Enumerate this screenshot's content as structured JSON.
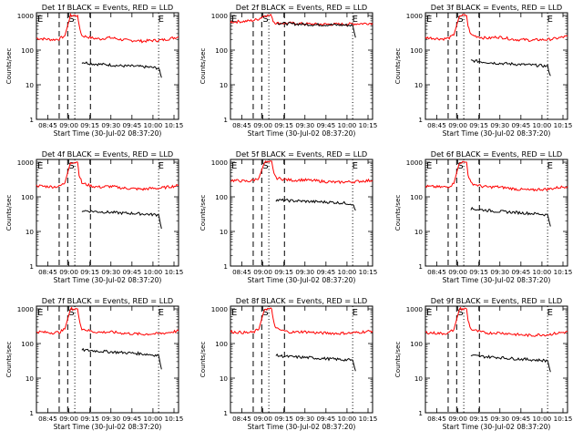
{
  "chart_data": [
    {
      "type": "line",
      "title": "Det 1f BLACK = Events, RED = LLD",
      "xlabel": "Start Time (30-Jul-02 08:37:20)",
      "ylabel": "Counts/sec",
      "xticks": [
        "08:45",
        "09:00",
        "09:15",
        "09:30",
        "09:45",
        "10:00",
        "10:15"
      ],
      "yticks": [
        "1",
        "10",
        "100",
        "1000"
      ],
      "ylim": [
        1,
        1200
      ],
      "yscale": "log",
      "markers": [
        "E",
        "S",
        "E"
      ],
      "series": [
        {
          "color": "#ff0000",
          "x": [
            0,
            0.06,
            0.12,
            0.16,
            0.2,
            0.24,
            0.27,
            0.29,
            0.3,
            0.32,
            0.36,
            0.4,
            0.45,
            0.5,
            0.55,
            0.6,
            0.65,
            0.7,
            0.75,
            0.8,
            0.85,
            0.9,
            0.95,
            1.0
          ],
          "y": [
            220,
            210,
            200,
            210,
            260,
            1000,
            1000,
            1000,
            500,
            260,
            240,
            220,
            210,
            230,
            220,
            200,
            190,
            190,
            180,
            190,
            190,
            200,
            220,
            240
          ]
        },
        {
          "color": "#000000",
          "x": [
            0.32,
            0.4,
            0.5,
            0.6,
            0.7,
            0.8,
            0.86,
            0.88
          ],
          "y": [
            45,
            40,
            38,
            35,
            34,
            32,
            30,
            16
          ]
        }
      ]
    },
    {
      "type": "line",
      "title": "Det 2f BLACK = Events, RED = LLD",
      "xlabel": "Start Time (30-Jul-02 08:37:20)",
      "ylabel": "Counts/sec",
      "xticks": [
        "08:45",
        "09:00",
        "09:15",
        "09:30",
        "09:45",
        "10:00",
        "10:15"
      ],
      "yticks": [
        "1",
        "10",
        "100",
        "1000"
      ],
      "ylim": [
        1,
        1200
      ],
      "yscale": "log",
      "markers": [
        "E",
        "S",
        "E"
      ],
      "series": [
        {
          "color": "#ff0000",
          "x": [
            0,
            0.1,
            0.16,
            0.2,
            0.24,
            0.27,
            0.29,
            0.3,
            0.32,
            0.4,
            0.5,
            0.6,
            0.7,
            0.8,
            0.9,
            1.0
          ],
          "y": [
            650,
            680,
            720,
            800,
            1000,
            1000,
            1000,
            700,
            600,
            600,
            580,
            560,
            560,
            560,
            580,
            600
          ]
        },
        {
          "color": "#000000",
          "x": [
            0.33,
            0.4,
            0.5,
            0.6,
            0.7,
            0.8,
            0.86,
            0.88
          ],
          "y": [
            600,
            580,
            560,
            540,
            540,
            530,
            520,
            230
          ]
        }
      ]
    },
    {
      "type": "line",
      "title": "Det 3f BLACK = Events, RED = LLD",
      "xlabel": "Start Time (30-Jul-02 08:37:20)",
      "ylabel": "Counts/sec",
      "xticks": [
        "08:45",
        "09:00",
        "09:15",
        "09:30",
        "09:45",
        "10:00",
        "10:15"
      ],
      "yticks": [
        "1",
        "10",
        "100",
        "1000"
      ],
      "ylim": [
        1,
        1200
      ],
      "yscale": "log",
      "markers": [
        "E",
        "S",
        "E"
      ],
      "series": [
        {
          "color": "#ff0000",
          "x": [
            0,
            0.06,
            0.12,
            0.16,
            0.2,
            0.24,
            0.27,
            0.29,
            0.3,
            0.32,
            0.36,
            0.4,
            0.45,
            0.5,
            0.55,
            0.6,
            0.65,
            0.7,
            0.75,
            0.8,
            0.85,
            0.9,
            0.95,
            1.0
          ],
          "y": [
            230,
            220,
            210,
            220,
            270,
            1000,
            1000,
            1000,
            500,
            280,
            250,
            230,
            220,
            240,
            230,
            210,
            200,
            200,
            190,
            200,
            200,
            210,
            230,
            250
          ]
        },
        {
          "color": "#000000",
          "x": [
            0.32,
            0.4,
            0.5,
            0.6,
            0.7,
            0.8,
            0.86,
            0.88
          ],
          "y": [
            50,
            46,
            42,
            40,
            38,
            36,
            34,
            18
          ]
        }
      ]
    },
    {
      "type": "line",
      "title": "Det 4f BLACK = Events, RED = LLD",
      "xlabel": "Start Time (30-Jul-02 08:37:20)",
      "ylabel": "Counts/sec",
      "xticks": [
        "08:45",
        "09:00",
        "09:15",
        "09:30",
        "09:45",
        "10:00",
        "10:15"
      ],
      "yticks": [
        "1",
        "10",
        "100",
        "1000"
      ],
      "ylim": [
        1,
        1200
      ],
      "yscale": "log",
      "markers": [
        "E",
        "S",
        "E"
      ],
      "series": [
        {
          "color": "#ff0000",
          "x": [
            0,
            0.06,
            0.12,
            0.16,
            0.2,
            0.24,
            0.27,
            0.29,
            0.3,
            0.32,
            0.36,
            0.4,
            0.45,
            0.5,
            0.55,
            0.6,
            0.65,
            0.7,
            0.75,
            0.8,
            0.85,
            0.9,
            0.95,
            1.0
          ],
          "y": [
            210,
            200,
            195,
            200,
            250,
            1000,
            1000,
            1000,
            450,
            250,
            220,
            200,
            190,
            200,
            195,
            180,
            175,
            170,
            165,
            175,
            175,
            185,
            200,
            210
          ]
        },
        {
          "color": "#000000",
          "x": [
            0.32,
            0.4,
            0.5,
            0.6,
            0.7,
            0.8,
            0.86,
            0.88
          ],
          "y": [
            40,
            38,
            36,
            34,
            33,
            31,
            30,
            12
          ]
        }
      ]
    },
    {
      "type": "line",
      "title": "Det 5f BLACK = Events, RED = LLD",
      "xlabel": "Start Time (30-Jul-02 08:37:20)",
      "ylabel": "Counts/sec",
      "xticks": [
        "08:45",
        "09:00",
        "09:15",
        "09:30",
        "09:45",
        "10:00",
        "10:15"
      ],
      "yticks": [
        "1",
        "10",
        "100",
        "1000"
      ],
      "ylim": [
        1,
        1200
      ],
      "yscale": "log",
      "markers": [
        "E",
        "S",
        "E"
      ],
      "series": [
        {
          "color": "#ff0000",
          "x": [
            0,
            0.06,
            0.12,
            0.16,
            0.2,
            0.24,
            0.27,
            0.29,
            0.3,
            0.32,
            0.36,
            0.4,
            0.45,
            0.5,
            0.55,
            0.6,
            0.65,
            0.7,
            0.75,
            0.8,
            0.85,
            0.9,
            0.95,
            1.0
          ],
          "y": [
            300,
            290,
            280,
            300,
            350,
            1000,
            1000,
            1000,
            600,
            350,
            330,
            310,
            300,
            310,
            300,
            290,
            280,
            270,
            260,
            270,
            270,
            280,
            290,
            300
          ]
        },
        {
          "color": "#000000",
          "x": [
            0.32,
            0.4,
            0.5,
            0.6,
            0.7,
            0.8,
            0.86,
            0.88
          ],
          "y": [
            80,
            78,
            75,
            72,
            70,
            66,
            62,
            40
          ]
        }
      ]
    },
    {
      "type": "line",
      "title": "Det 6f BLACK = Events, RED = LLD",
      "xlabel": "Start Time (30-Jul-02 08:37:20)",
      "ylabel": "Counts/sec",
      "xticks": [
        "08:45",
        "09:00",
        "09:15",
        "09:30",
        "09:45",
        "10:00",
        "10:15"
      ],
      "yticks": [
        "1",
        "10",
        "100",
        "1000"
      ],
      "ylim": [
        1,
        1200
      ],
      "yscale": "log",
      "markers": [
        "E",
        "S",
        "E"
      ],
      "series": [
        {
          "color": "#ff0000",
          "x": [
            0,
            0.06,
            0.12,
            0.16,
            0.2,
            0.24,
            0.27,
            0.29,
            0.3,
            0.32,
            0.36,
            0.4,
            0.45,
            0.5,
            0.55,
            0.6,
            0.65,
            0.7,
            0.75,
            0.8,
            0.85,
            0.9,
            0.95,
            1.0
          ],
          "y": [
            200,
            195,
            190,
            195,
            240,
            1000,
            1000,
            1000,
            450,
            250,
            220,
            200,
            190,
            195,
            185,
            175,
            165,
            160,
            155,
            165,
            165,
            175,
            190,
            200
          ]
        },
        {
          "color": "#000000",
          "x": [
            0.32,
            0.4,
            0.5,
            0.6,
            0.7,
            0.8,
            0.86,
            0.88
          ],
          "y": [
            45,
            42,
            38,
            36,
            34,
            32,
            30,
            14
          ]
        }
      ]
    },
    {
      "type": "line",
      "title": "Det 7f BLACK = Events, RED = LLD",
      "xlabel": "Start Time (30-Jul-02 08:37:20)",
      "ylabel": "Counts/sec",
      "xticks": [
        "08:45",
        "09:00",
        "09:15",
        "09:30",
        "09:45",
        "10:00",
        "10:15"
      ],
      "yticks": [
        "1",
        "10",
        "100",
        "1000"
      ],
      "ylim": [
        1,
        1200
      ],
      "yscale": "log",
      "markers": [
        "E",
        "S",
        "E"
      ],
      "series": [
        {
          "color": "#ff0000",
          "x": [
            0,
            0.06,
            0.12,
            0.16,
            0.2,
            0.24,
            0.27,
            0.29,
            0.3,
            0.32,
            0.36,
            0.4,
            0.45,
            0.5,
            0.55,
            0.6,
            0.65,
            0.7,
            0.75,
            0.8,
            0.85,
            0.9,
            0.95,
            1.0
          ],
          "y": [
            220,
            210,
            205,
            210,
            260,
            1000,
            1000,
            1000,
            500,
            270,
            240,
            220,
            210,
            215,
            210,
            200,
            195,
            190,
            185,
            190,
            190,
            200,
            215,
            230
          ]
        },
        {
          "color": "#000000",
          "x": [
            0.32,
            0.4,
            0.5,
            0.6,
            0.7,
            0.8,
            0.86,
            0.88
          ],
          "y": [
            65,
            62,
            58,
            55,
            52,
            48,
            45,
            18
          ]
        }
      ]
    },
    {
      "type": "line",
      "title": "Det 8f BLACK = Events, RED = LLD",
      "xlabel": "Start Time (30-Jul-02 08:37:20)",
      "ylabel": "Counts/sec",
      "xticks": [
        "08:45",
        "09:00",
        "09:15",
        "09:30",
        "09:45",
        "10:00",
        "10:15"
      ],
      "yticks": [
        "1",
        "10",
        "100",
        "1000"
      ],
      "ylim": [
        1,
        1200
      ],
      "yscale": "log",
      "markers": [
        "E",
        "S",
        "E"
      ],
      "series": [
        {
          "color": "#ff0000",
          "x": [
            0,
            0.06,
            0.12,
            0.16,
            0.2,
            0.24,
            0.27,
            0.29,
            0.3,
            0.32,
            0.36,
            0.4,
            0.45,
            0.5,
            0.55,
            0.6,
            0.65,
            0.7,
            0.75,
            0.8,
            0.85,
            0.9,
            0.95,
            1.0
          ],
          "y": [
            220,
            210,
            205,
            210,
            260,
            1000,
            1000,
            1000,
            500,
            270,
            240,
            220,
            210,
            220,
            215,
            205,
            200,
            200,
            195,
            200,
            200,
            210,
            220,
            230
          ]
        },
        {
          "color": "#000000",
          "x": [
            0.32,
            0.4,
            0.5,
            0.6,
            0.7,
            0.8,
            0.86,
            0.88
          ],
          "y": [
            45,
            42,
            40,
            38,
            36,
            34,
            33,
            16
          ]
        }
      ]
    },
    {
      "type": "line",
      "title": "Det 9f BLACK = Events, RED = LLD",
      "xlabel": "Start Time (30-Jul-02 08:37:20)",
      "ylabel": "Counts/sec",
      "xticks": [
        "08:45",
        "09:00",
        "09:15",
        "09:30",
        "09:45",
        "10:00",
        "10:15"
      ],
      "yticks": [
        "1",
        "10",
        "100",
        "1000"
      ],
      "ylim": [
        1,
        1200
      ],
      "yscale": "log",
      "markers": [
        "E",
        "S",
        "E"
      ],
      "series": [
        {
          "color": "#ff0000",
          "x": [
            0,
            0.06,
            0.12,
            0.16,
            0.2,
            0.24,
            0.27,
            0.29,
            0.3,
            0.32,
            0.36,
            0.4,
            0.45,
            0.5,
            0.55,
            0.6,
            0.65,
            0.7,
            0.75,
            0.8,
            0.85,
            0.9,
            0.95,
            1.0
          ],
          "y": [
            210,
            200,
            195,
            200,
            250,
            1000,
            1000,
            1000,
            470,
            260,
            230,
            210,
            200,
            205,
            200,
            190,
            180,
            175,
            170,
            180,
            180,
            190,
            205,
            215
          ]
        },
        {
          "color": "#000000",
          "x": [
            0.32,
            0.4,
            0.5,
            0.6,
            0.7,
            0.8,
            0.86,
            0.88
          ],
          "y": [
            45,
            42,
            40,
            37,
            35,
            33,
            32,
            15
          ]
        }
      ]
    }
  ]
}
